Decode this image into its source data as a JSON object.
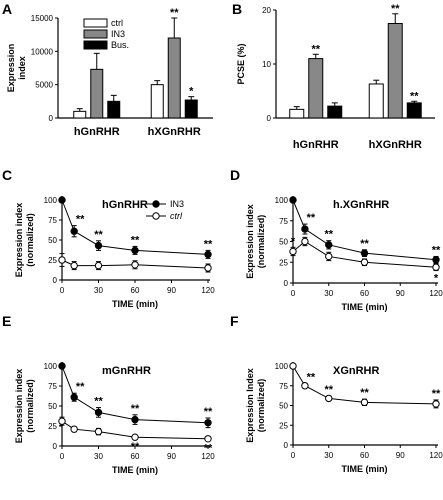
{
  "chart_data": [
    {
      "panel": "A",
      "type": "bar",
      "categories": [
        "hGnRHR",
        "hXGnRHR"
      ],
      "series": [
        {
          "name": "ctrl",
          "values": [
            1000,
            5000
          ],
          "errors": [
            400,
            600
          ],
          "color": "#ffffff"
        },
        {
          "name": "IN3",
          "values": [
            7300,
            12000
          ],
          "errors": [
            2400,
            3000
          ],
          "color": "#888888"
        },
        {
          "name": "Bus.",
          "values": [
            2500,
            2700
          ],
          "errors": [
            900,
            500
          ],
          "color": "#000000"
        }
      ],
      "stars": [
        [
          "",
          "**",
          ""
        ],
        [
          "",
          "**",
          "*"
        ]
      ],
      "ylabel": "Expression\nindex",
      "ylim": [
        0,
        15000
      ],
      "yticks": [
        "0",
        "5000",
        "10000",
        "15000"
      ],
      "legend": "top-left"
    },
    {
      "panel": "B",
      "type": "bar",
      "categories": [
        "hGnRHR",
        "hXGnRHR"
      ],
      "series": [
        {
          "name": "ctrl",
          "values": [
            1.6,
            6.3
          ],
          "errors": [
            0.5,
            0.7
          ],
          "color": "#ffffff"
        },
        {
          "name": "IN3",
          "values": [
            11,
            17.5
          ],
          "errors": [
            0.8,
            1.8
          ],
          "color": "#888888"
        },
        {
          "name": "Bus.",
          "values": [
            2.2,
            2.8
          ],
          "errors": [
            0.6,
            0.3
          ],
          "color": "#000000"
        }
      ],
      "stars": [
        [
          "",
          "**",
          ""
        ],
        [
          "",
          "**",
          "**"
        ]
      ],
      "ylabel": "PCSE (%)",
      "ylim": [
        0,
        20
      ],
      "yticks": [
        "0",
        "10",
        "20"
      ]
    },
    {
      "panel": "C",
      "type": "line",
      "title": "hGnRHR",
      "x": [
        0,
        10,
        30,
        60,
        120
      ],
      "series": [
        {
          "name": "IN3",
          "marker": "filled",
          "values": [
            100,
            61,
            43,
            37,
            32
          ],
          "errors": [
            0,
            7,
            6,
            5,
            5
          ]
        },
        {
          "name": "ctrl",
          "marker": "open",
          "values": [
            25,
            18,
            18,
            19,
            15
          ],
          "errors": [
            8,
            5,
            5,
            5,
            5
          ]
        }
      ],
      "stars": {
        "IN3": [
          "",
          "**",
          "**",
          "**",
          "**"
        ]
      },
      "xlabel": "TIME (min)",
      "ylabel": "Expression index\n(normalized)",
      "xlim": [
        0,
        120
      ],
      "ylim": [
        0,
        100
      ],
      "xticks": [
        "0",
        "30",
        "60",
        "90",
        "120"
      ],
      "yticks": [
        "0",
        "25",
        "50",
        "75",
        "100"
      ],
      "legend": "top-right"
    },
    {
      "panel": "D",
      "type": "line",
      "title": "h.XGnRHR",
      "x": [
        0,
        10,
        30,
        60,
        120
      ],
      "series": [
        {
          "name": "IN3",
          "marker": "filled",
          "values": [
            100,
            65,
            46,
            36,
            28
          ],
          "errors": [
            0,
            6,
            5,
            4,
            4
          ]
        },
        {
          "name": "ctrl",
          "marker": "open",
          "values": [
            38,
            50,
            32,
            25,
            19
          ],
          "errors": [
            5,
            5,
            5,
            4,
            4
          ]
        }
      ],
      "stars": {
        "IN3": [
          "",
          "**",
          "**",
          "**",
          "**"
        ],
        "ctrl": [
          "*",
          "",
          "",
          "",
          "*"
        ]
      },
      "xlabel": "TIME (min)",
      "ylabel": "Expression index\n(normalized)",
      "xlim": [
        0,
        120
      ],
      "ylim": [
        0,
        100
      ],
      "xticks": [
        "0",
        "30",
        "60",
        "90",
        "120"
      ],
      "yticks": [
        "0",
        "25",
        "50",
        "75",
        "100"
      ]
    },
    {
      "panel": "E",
      "type": "line",
      "title": "mGnRHR",
      "x": [
        0,
        10,
        30,
        60,
        120
      ],
      "series": [
        {
          "name": "IN3",
          "marker": "filled",
          "values": [
            100,
            61,
            42,
            33,
            29
          ],
          "errors": [
            0,
            5,
            6,
            6,
            6
          ]
        },
        {
          "name": "ctrl",
          "marker": "open",
          "values": [
            31,
            21,
            18,
            11,
            9
          ],
          "errors": [
            5,
            3,
            4,
            2,
            2
          ]
        }
      ],
      "stars": {
        "IN3": [
          "",
          "**",
          "**",
          "**",
          "**"
        ],
        "ctrl": [
          "",
          "",
          "",
          "**",
          "**"
        ]
      },
      "xlabel": "TIME (min)",
      "ylabel": "Expression index\n(normalized)",
      "xlim": [
        0,
        120
      ],
      "ylim": [
        0,
        100
      ],
      "xticks": [
        "0",
        "30",
        "60",
        "90",
        "120"
      ],
      "yticks": [
        "0",
        "25",
        "50",
        "75",
        "100"
      ]
    },
    {
      "panel": "F",
      "type": "line",
      "title": "XGnRHR",
      "x": [
        0,
        10,
        30,
        60,
        120
      ],
      "series": [
        {
          "name": "ctrl",
          "marker": "open",
          "values": [
            100,
            75,
            59,
            54,
            52
          ],
          "errors": [
            0,
            3,
            3,
            4,
            5
          ]
        }
      ],
      "stars": {
        "ctrl": [
          "",
          "**",
          "**",
          "**",
          "**"
        ]
      },
      "xlabel": "TIME (min)",
      "ylabel": "Expression Index\n(normalized)",
      "xlim": [
        0,
        120
      ],
      "ylim": [
        0,
        100
      ],
      "xticks": [
        "0",
        "30",
        "60",
        "90",
        "120"
      ],
      "yticks": [
        "0",
        "25",
        "50",
        "75",
        "100"
      ]
    }
  ]
}
